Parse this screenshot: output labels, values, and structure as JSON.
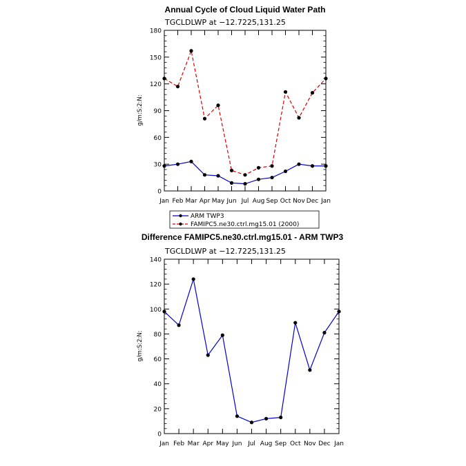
{
  "chart_data": [
    {
      "type": "line",
      "title": "Annual Cycle of Cloud Liquid Water Path",
      "subtitle": "TGCLDLWP  at  −12.7225,131.25",
      "ylabel": "g/m:S:2:N:",
      "ylim": [
        0,
        180
      ],
      "yticks": [
        0,
        30,
        60,
        90,
        120,
        150,
        180
      ],
      "categories": [
        "Jan",
        "Feb",
        "Mar",
        "Apr",
        "May",
        "Jun",
        "Jul",
        "Aug",
        "Sep",
        "Oct",
        "Nov",
        "Dec",
        "Jan"
      ],
      "legend_position": "bottom",
      "series": [
        {
          "name": "ARM TWP3",
          "color": "#0000cc",
          "dash": "solid",
          "values": [
            28,
            30,
            33,
            18,
            17,
            9,
            8,
            13,
            15,
            22,
            30,
            28,
            28
          ]
        },
        {
          "name": "FAMIPC5.ne30.ctrl.mg15.01 (2000)",
          "color": "#dd0000",
          "dash": "dashed",
          "values": [
            126,
            117,
            157,
            81,
            96,
            23,
            18,
            26,
            28,
            111,
            82,
            110,
            126
          ]
        }
      ]
    },
    {
      "type": "line",
      "title": "Difference FAMIPC5.ne30.ctrl.mg15.01 - ARM TWP3",
      "subtitle": "TGCLDLWP  at  −12.7225,131.25",
      "ylabel": "g/m:S:2:N:",
      "ylim": [
        0,
        140
      ],
      "yticks": [
        0,
        20,
        40,
        60,
        80,
        100,
        120,
        140
      ],
      "categories": [
        "Jan",
        "Feb",
        "Mar",
        "Apr",
        "May",
        "Jun",
        "Jul",
        "Aug",
        "Sep",
        "Oct",
        "Nov",
        "Dec",
        "Jan"
      ],
      "series": [
        {
          "name": "",
          "color": "#0000cc",
          "dash": "solid",
          "values": [
            98,
            87,
            124,
            63,
            79,
            14,
            9,
            12,
            13,
            89,
            51,
            81,
            98
          ]
        }
      ]
    }
  ]
}
